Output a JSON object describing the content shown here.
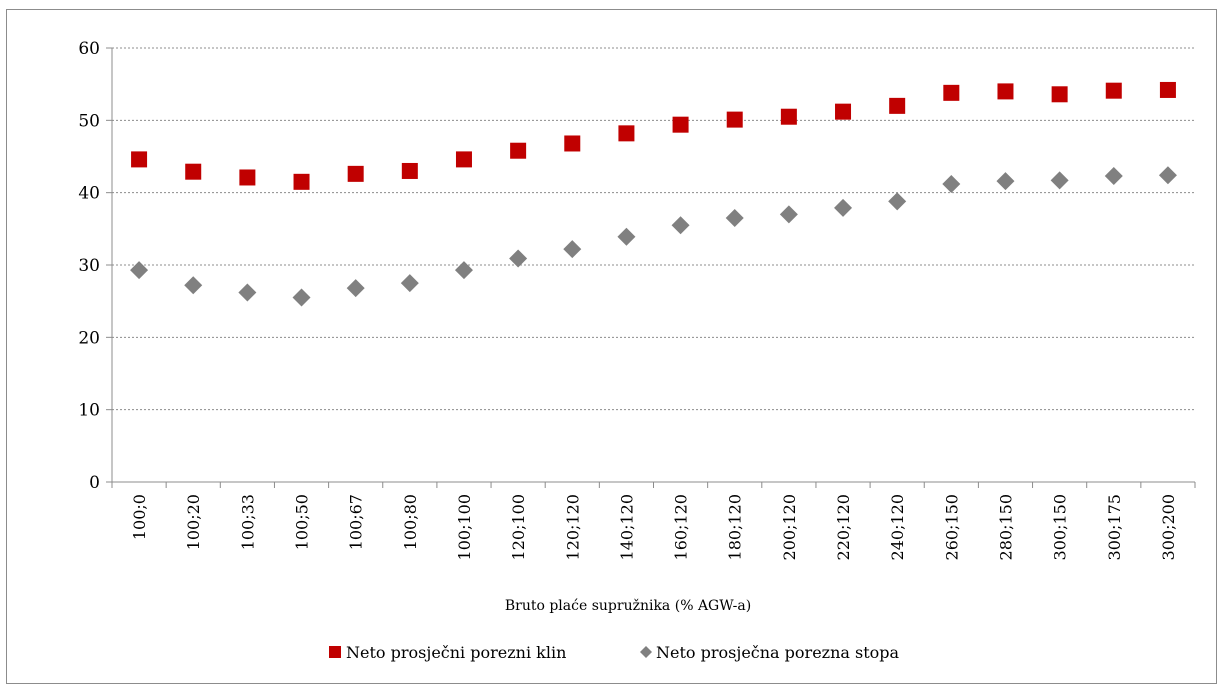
{
  "chart_data": {
    "type": "scatter",
    "title": "",
    "xlabel": "Bruto plaće supružnika (% AGW-a)",
    "ylabel": "",
    "ylim": [
      0,
      60
    ],
    "yticks": [
      "0",
      "10",
      "20",
      "30",
      "40",
      "50",
      "60"
    ],
    "grid": true,
    "legend_position": "bottom",
    "categories": [
      "100;0",
      "100;20",
      "100;33",
      "100;50",
      "100;67",
      "100;80",
      "100;100",
      "120;100",
      "120;120",
      "140;120",
      "160;120",
      "180;120",
      "200;120",
      "220;120",
      "240;120",
      "260;150",
      "280;150",
      "300;150",
      "300;175",
      "300;200"
    ],
    "series": [
      {
        "name": "Neto prosječni porezni klin",
        "marker": "square",
        "color": "#c00000",
        "values": [
          44.6,
          42.9,
          42.1,
          41.5,
          42.6,
          43.0,
          44.6,
          45.8,
          46.8,
          48.2,
          49.4,
          50.1,
          50.5,
          51.2,
          52.0,
          53.8,
          54.0,
          53.6,
          54.1,
          54.2
        ]
      },
      {
        "name": "Neto prosječna porezna stopa",
        "marker": "diamond",
        "color": "#808080",
        "values": [
          29.3,
          27.2,
          26.2,
          25.5,
          26.8,
          27.5,
          29.3,
          30.9,
          32.2,
          33.9,
          35.5,
          36.5,
          37.0,
          37.9,
          38.8,
          41.2,
          41.6,
          41.7,
          42.3,
          42.4
        ]
      }
    ]
  }
}
